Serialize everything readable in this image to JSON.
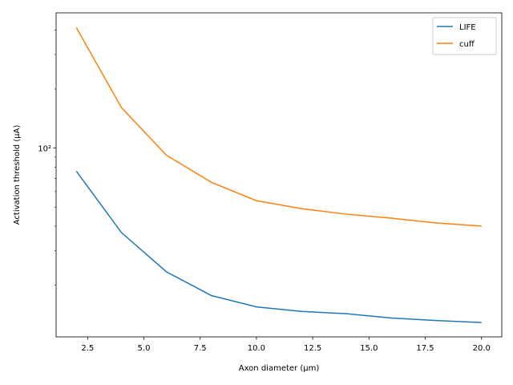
{
  "chart_data": {
    "type": "line",
    "xlabel": "Axon diameter (µm)",
    "ylabel": "Activation threshold (µA)",
    "x": [
      2,
      4,
      6,
      8,
      10,
      12,
      14,
      16,
      18,
      20
    ],
    "series": [
      {
        "name": "LIFE",
        "color": "#1f77b4",
        "values": [
          76.2,
          37.1,
          23.4,
          17.7,
          15.5,
          14.7,
          14.3,
          13.6,
          13.2,
          12.9
        ]
      },
      {
        "name": "cuff",
        "color": "#ff7f0e",
        "values": [
          411,
          161,
          91.9,
          66.9,
          53.9,
          49.1,
          46.0,
          43.9,
          41.5,
          40.0
        ]
      }
    ],
    "xlim": [
      1.1,
      20.9
    ],
    "xticks": [
      2.5,
      {
        "value": 5,
        "label": "5.0"
      },
      7.5,
      {
        "value": 10,
        "label": "10.0"
      },
      12.5,
      {
        "value": 15,
        "label": "15.0"
      },
      17.5,
      {
        "value": 20,
        "label": "20.0"
      }
    ],
    "ylim": [
      10.9,
      489
    ],
    "yscale": "log",
    "yticks": [
      {
        "value": 100,
        "label": "10²"
      }
    ],
    "yminorticks": [
      20,
      30,
      40,
      50,
      60,
      70,
      80,
      90,
      200,
      300,
      400
    ],
    "legend": "upper right",
    "grid": false
  }
}
